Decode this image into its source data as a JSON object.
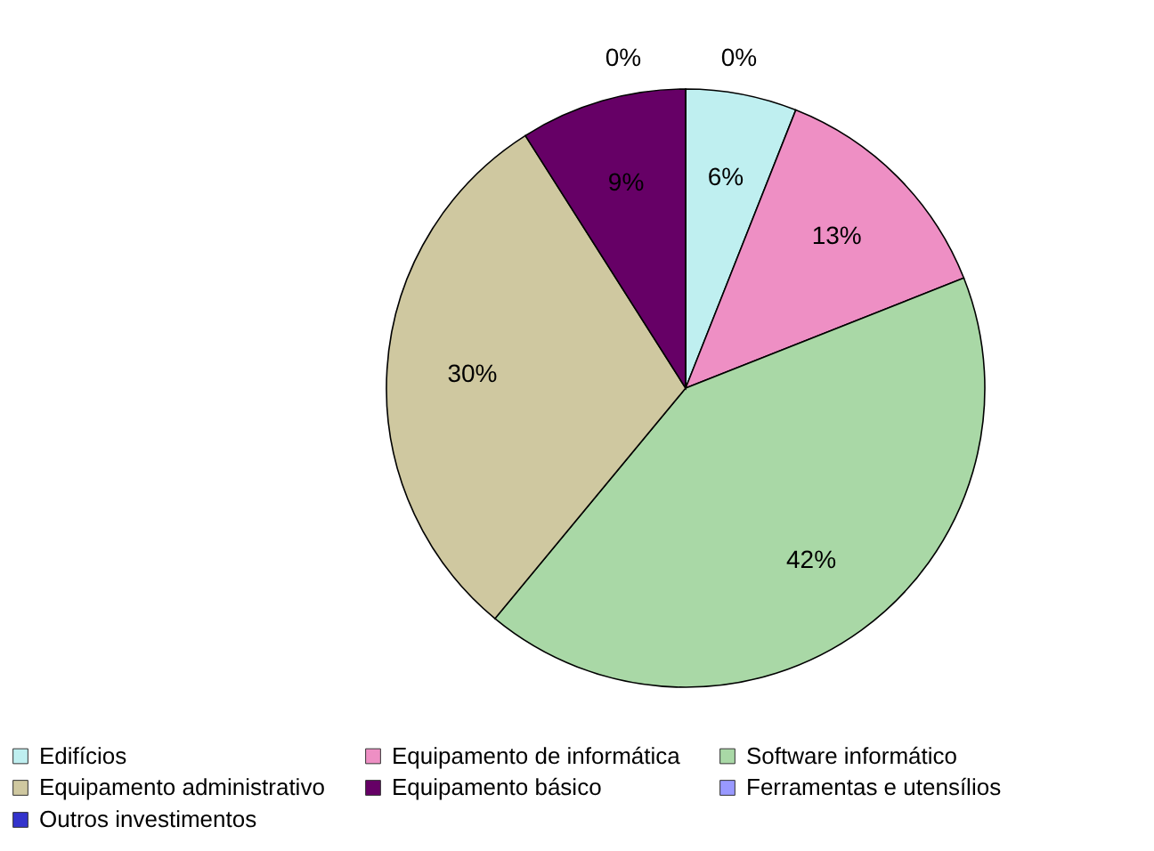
{
  "chart_data": {
    "type": "pie",
    "categories": [
      "Edifícios",
      "Equipamento de informática",
      "Software informático",
      "Equipamento administrativo",
      "Equipamento básico",
      "Ferramentas e utensílios",
      "Outros investimentos"
    ],
    "values": [
      6,
      13,
      42,
      30,
      9,
      0,
      0
    ],
    "value_labels": [
      "6%",
      "13%",
      "42%",
      "30%",
      "9%",
      "0%",
      "0%"
    ],
    "colors": [
      "#bfeff0",
      "#ee8fc4",
      "#a9d8a6",
      "#cfc8a0",
      "#660066",
      "#9999ff",
      "#3333cc"
    ],
    "legend": "bottom left"
  }
}
